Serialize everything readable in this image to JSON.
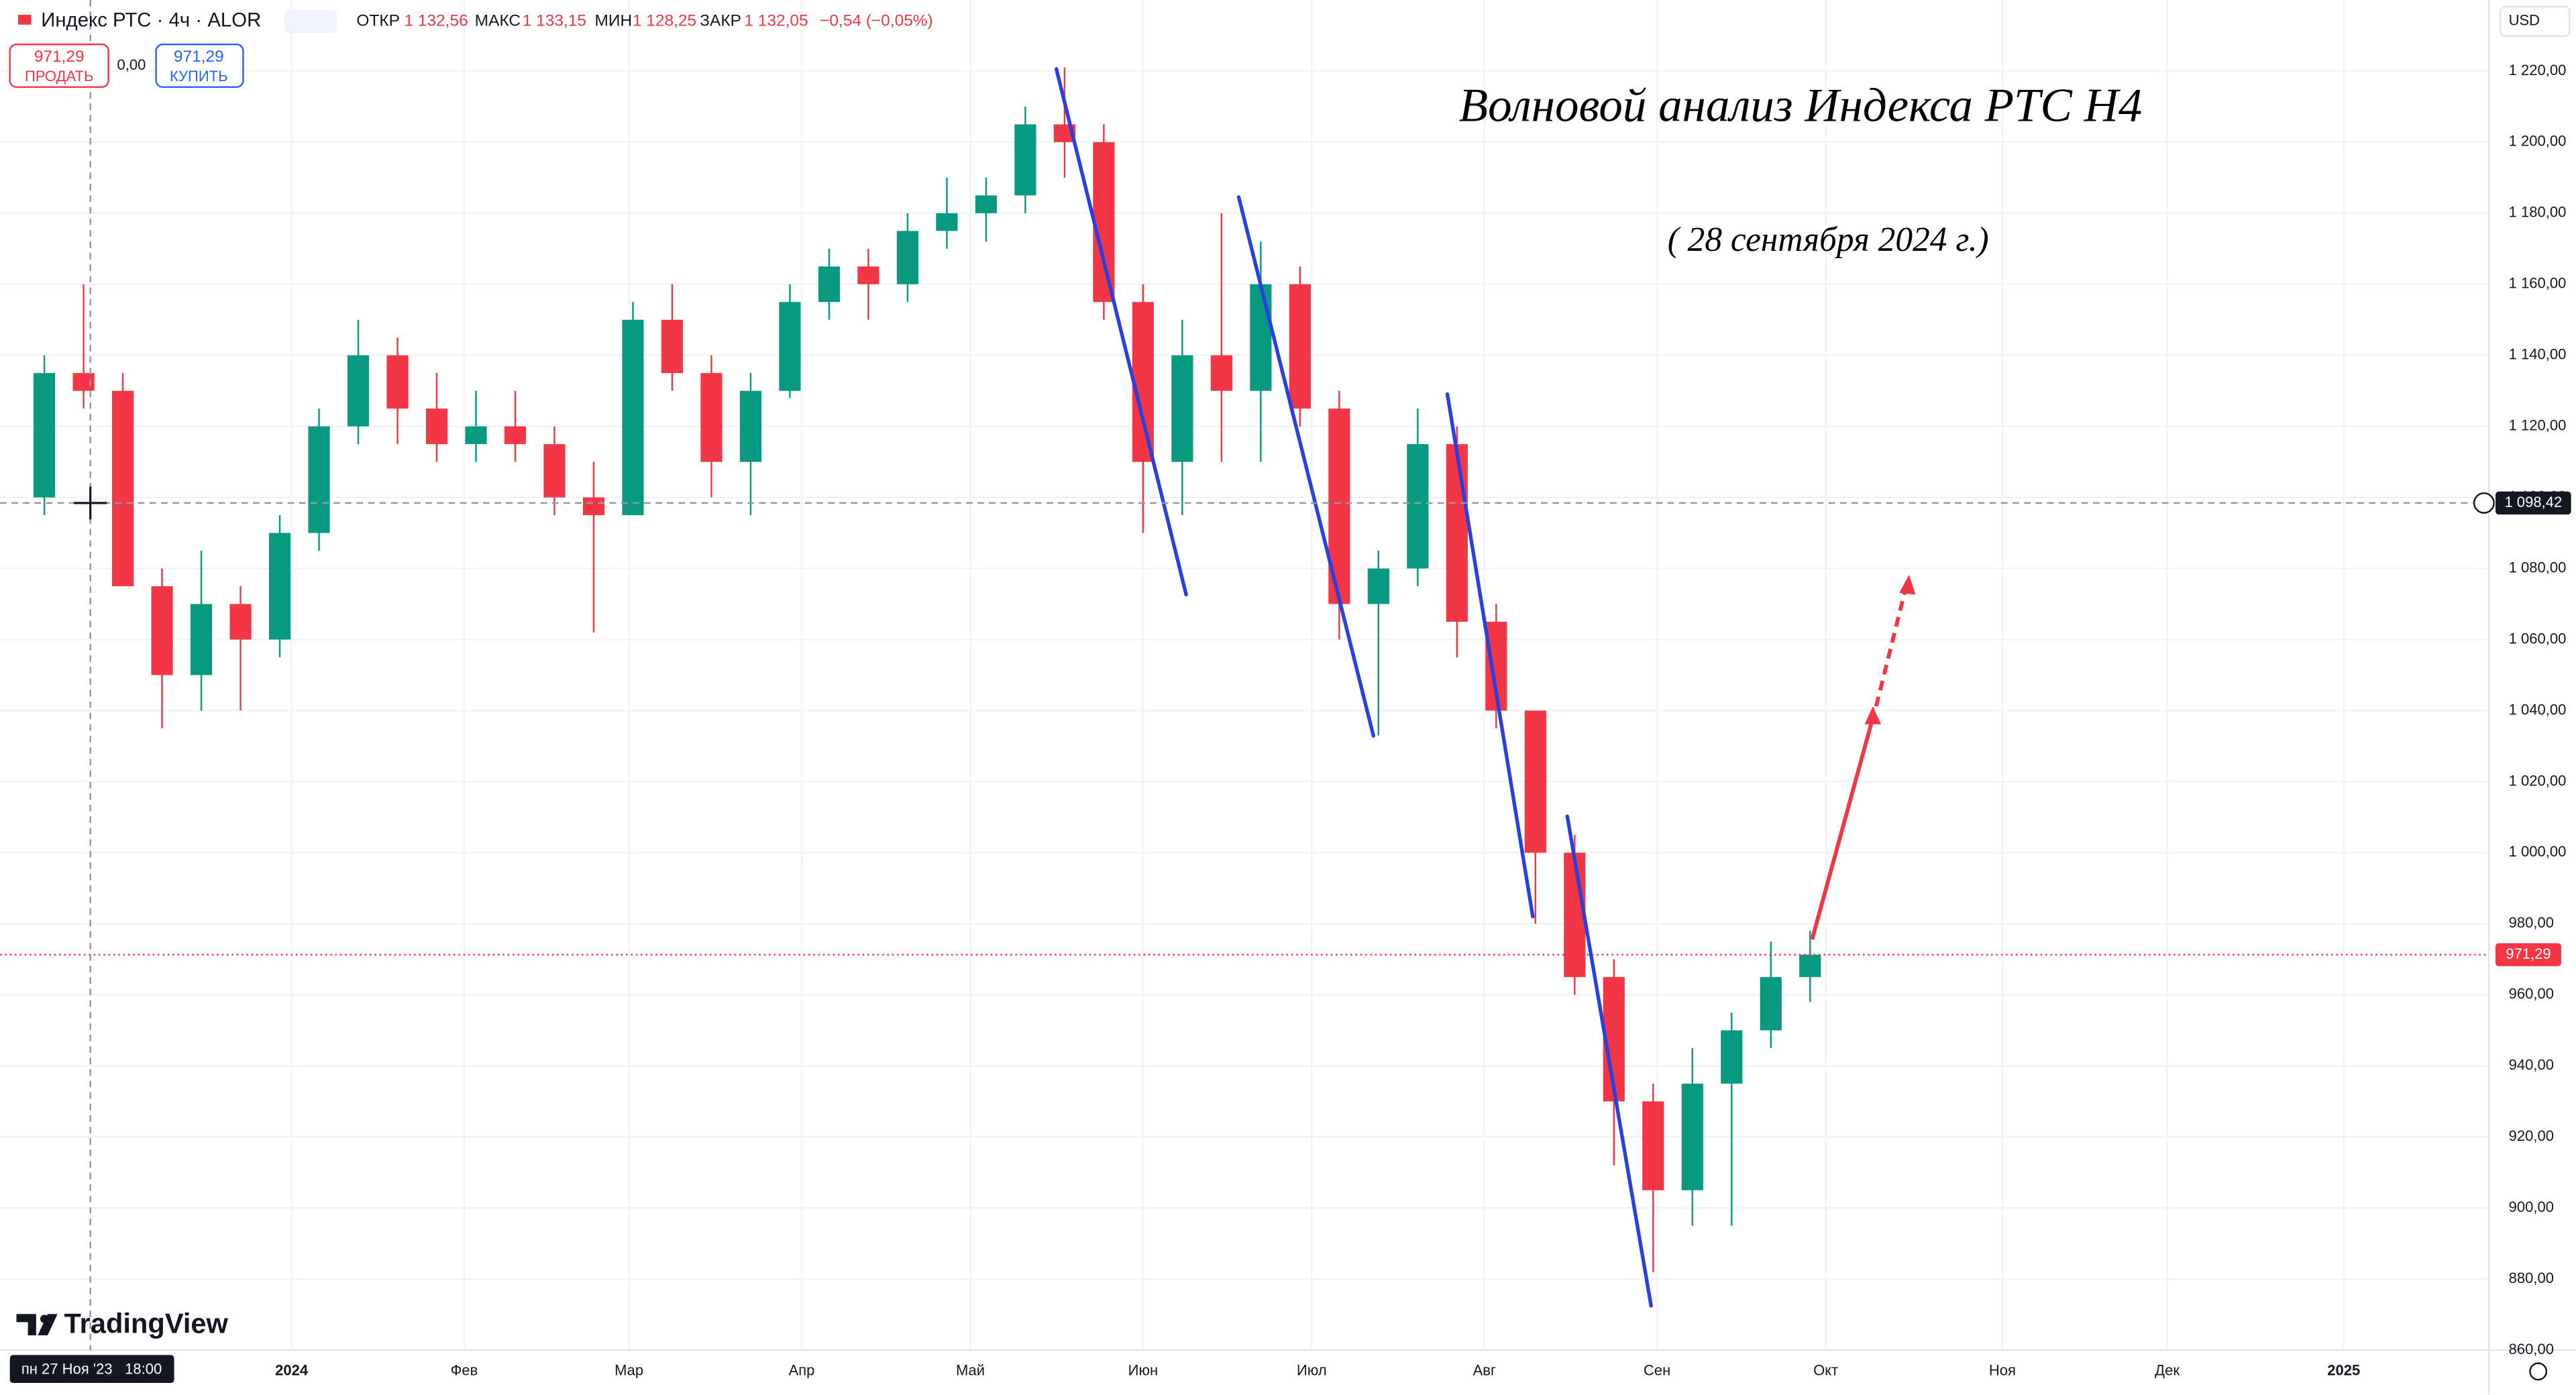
{
  "header": {
    "symbol": "Индекс РТС · 4ч · ALOR",
    "open_label": "ОТКР",
    "open": "1 132,56",
    "high_label": "МАКС",
    "high": "1 133,15",
    "low_label": "МИН",
    "low": "1 128,25",
    "close_label": "ЗАКР",
    "close": "1 132,05",
    "change": "−0,54 (−0,05%)",
    "sell_price": "971,29",
    "sell": "ПРОДАТЬ",
    "spread": "0,00",
    "buy_price": "971,29",
    "buy": "КУПИТЬ",
    "currency": "USD",
    "logo": "TradingView"
  },
  "chart_data": {
    "type": "candlestick",
    "title": "Волновой анализ Индекса РТС Н4",
    "subtitle": "( 28 сентября 2024 г.)",
    "up_color": "#089981",
    "down_color": "#f23645",
    "grid": true,
    "ohlc": [
      [
        1100,
        1140,
        1095,
        1135
      ],
      [
        1135,
        1160,
        1125,
        1130
      ],
      [
        1130,
        1135,
        1075,
        1075
      ],
      [
        1075,
        1080,
        1035,
        1050
      ],
      [
        1050,
        1085,
        1040,
        1070
      ],
      [
        1070,
        1075,
        1040,
        1060
      ],
      [
        1060,
        1095,
        1055,
        1090
      ],
      [
        1090,
        1125,
        1085,
        1120
      ],
      [
        1120,
        1150,
        1115,
        1140
      ],
      [
        1140,
        1145,
        1115,
        1125
      ],
      [
        1125,
        1135,
        1110,
        1115
      ],
      [
        1115,
        1130,
        1110,
        1120
      ],
      [
        1120,
        1130,
        1110,
        1115
      ],
      [
        1115,
        1120,
        1095,
        1100
      ],
      [
        1100,
        1110,
        1062,
        1095
      ],
      [
        1095,
        1155,
        1095,
        1150
      ],
      [
        1150,
        1160,
        1130,
        1135
      ],
      [
        1135,
        1140,
        1100,
        1110
      ],
      [
        1110,
        1135,
        1095,
        1130
      ],
      [
        1130,
        1160,
        1128,
        1155
      ],
      [
        1155,
        1170,
        1150,
        1165
      ],
      [
        1165,
        1170,
        1150,
        1160
      ],
      [
        1160,
        1180,
        1155,
        1175
      ],
      [
        1175,
        1190,
        1170,
        1180
      ],
      [
        1180,
        1190,
        1172,
        1185
      ],
      [
        1185,
        1210,
        1180,
        1205
      ],
      [
        1205,
        1221,
        1190,
        1200
      ],
      [
        1200,
        1205,
        1150,
        1155
      ],
      [
        1155,
        1160,
        1090,
        1110
      ],
      [
        1110,
        1150,
        1095,
        1140
      ],
      [
        1140,
        1180,
        1110,
        1130
      ],
      [
        1130,
        1172,
        1110,
        1160
      ],
      [
        1160,
        1165,
        1120,
        1125
      ],
      [
        1125,
        1130,
        1060,
        1070
      ],
      [
        1070,
        1085,
        1033,
        1080
      ],
      [
        1080,
        1125,
        1075,
        1115
      ],
      [
        1115,
        1120,
        1055,
        1065
      ],
      [
        1065,
        1070,
        1035,
        1040
      ],
      [
        1040,
        1040,
        980,
        1000
      ],
      [
        1000,
        1005,
        960,
        965
      ],
      [
        965,
        970,
        912,
        930
      ],
      [
        930,
        935,
        882,
        905
      ],
      [
        905,
        945,
        895,
        935
      ],
      [
        935,
        955,
        895,
        950
      ],
      [
        950,
        975,
        945,
        965
      ],
      [
        965,
        978,
        958,
        971.29
      ]
    ],
    "xlim": [
      -1.13,
      62.3
    ],
    "xticks": [
      {
        "value": 6.3,
        "label": "2024"
      },
      {
        "value": 10.7,
        "label": "Фев"
      },
      {
        "value": 14.9,
        "label": "Мар"
      },
      {
        "value": 19.3,
        "label": "Апр"
      },
      {
        "value": 23.6,
        "label": "Май"
      },
      {
        "value": 28.0,
        "label": "Июн"
      },
      {
        "value": 32.3,
        "label": "Июл"
      },
      {
        "value": 36.7,
        "label": "Авг"
      },
      {
        "value": 41.1,
        "label": "Сен"
      },
      {
        "value": 45.4,
        "label": "Окт"
      },
      {
        "value": 49.9,
        "label": "Ноя"
      },
      {
        "value": 54.1,
        "label": "Дек"
      },
      {
        "value": 58.6,
        "label": "2025"
      }
    ],
    "ylim": [
      860,
      1240
    ],
    "yticks": [
      {
        "value": 860,
        "label": "860,00"
      },
      {
        "value": 880,
        "label": "880,00"
      },
      {
        "value": 900,
        "label": "900,00"
      },
      {
        "value": 920,
        "label": "920,00"
      },
      {
        "value": 940,
        "label": "940,00"
      },
      {
        "value": 960,
        "label": "960,00"
      },
      {
        "value": 980,
        "label": "980,00"
      },
      {
        "value": 1000,
        "label": "1 000,00"
      },
      {
        "value": 1020,
        "label": "1 020,00"
      },
      {
        "value": 1040,
        "label": "1 040,00"
      },
      {
        "value": 1060,
        "label": "1 060,00"
      },
      {
        "value": 1080,
        "label": "1 080,00"
      },
      {
        "value": 1100,
        "label": "1 100,00"
      },
      {
        "value": 1120,
        "label": "1 120,00"
      },
      {
        "value": 1140,
        "label": "1 140,00"
      },
      {
        "value": 1160,
        "label": "1 160,00"
      },
      {
        "value": 1180,
        "label": "1 180,00"
      },
      {
        "value": 1200,
        "label": "1 200,00"
      },
      {
        "value": 1220,
        "label": "1 220,00"
      }
    ],
    "last_price": {
      "value": 971.29,
      "label": "971,29"
    },
    "crosshair": {
      "value": 1098.42,
      "label": "1 098,42",
      "date_label": "пн 27 Ноя '23",
      "time_label": "18:00"
    }
  }
}
